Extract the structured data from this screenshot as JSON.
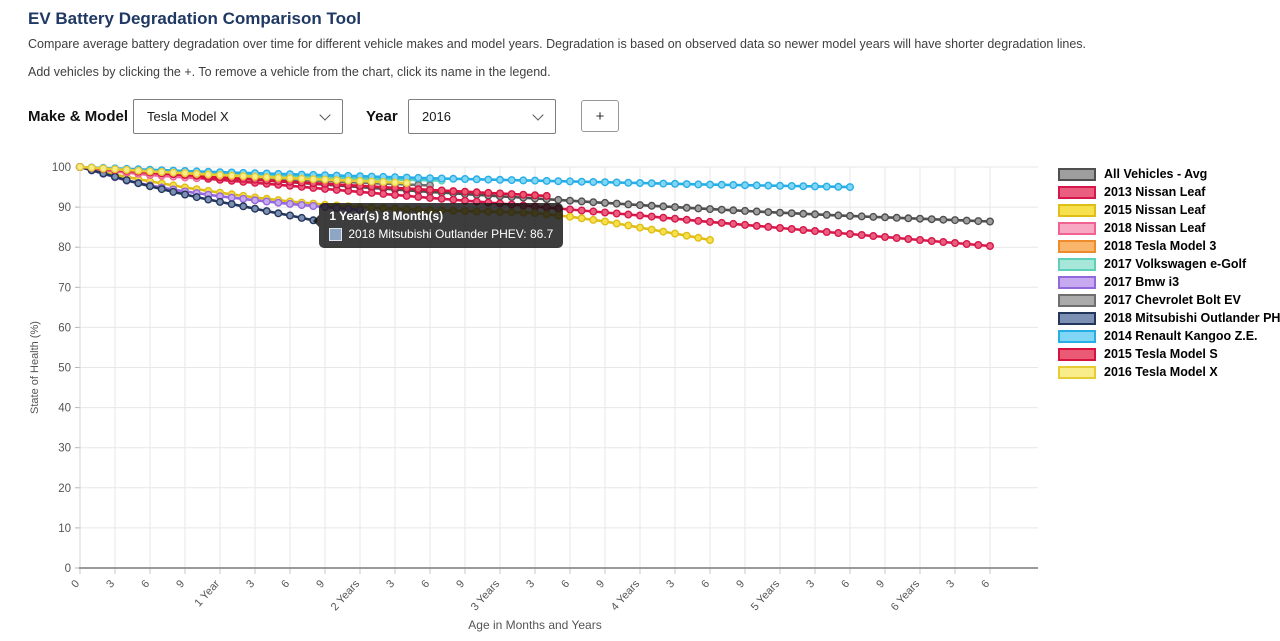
{
  "header": {
    "title": "EV Battery Degradation Comparison Tool",
    "description_line1": "Compare average battery degradation over time for different vehicle makes and model years. Degradation is based on observed data so newer model years will have shorter degradation lines.",
    "description_line2": "Add vehicles by clicking the +. To remove a vehicle from the chart, click its name in the legend."
  },
  "controls": {
    "make_model_label": "Make & Model",
    "make_model_value": "Tesla Model X",
    "year_label": "Year",
    "year_value": "2016",
    "add_button_label": "+"
  },
  "chart_data": {
    "type": "line",
    "title": "",
    "xlabel": "Age in Months and Years",
    "ylabel": "State of Health (%)",
    "ylim": [
      0,
      100
    ],
    "y_ticks": [
      0,
      10,
      20,
      30,
      40,
      50,
      60,
      70,
      80,
      90,
      100
    ],
    "x_unit": "months",
    "x_max_months": 78,
    "grid": true,
    "legend_position": "right",
    "x_ticks": {
      "months": [
        0,
        3,
        6,
        9,
        12,
        15,
        18,
        21,
        24,
        27,
        30,
        33,
        36,
        39,
        42,
        45,
        48,
        51,
        54,
        57,
        60,
        63,
        66,
        69,
        72,
        75,
        78
      ],
      "labels": [
        "0",
        "3",
        "6",
        "9",
        "1 Year",
        "3",
        "6",
        "9",
        "2 Years",
        "3",
        "6",
        "9",
        "3 Years",
        "3",
        "6",
        "9",
        "4 Years",
        "3",
        "6",
        "9",
        "5 Years",
        "3",
        "6",
        "9",
        "6 Years",
        "3",
        "6"
      ]
    },
    "series": [
      {
        "name": "All Vehicles - Avg",
        "fill": "#9e9e9e",
        "border": "#4f4f4f",
        "points": [
          [
            0,
            100
          ],
          [
            6,
            98.7
          ],
          [
            12,
            97.4
          ],
          [
            18,
            96.2
          ],
          [
            24,
            95.0
          ],
          [
            30,
            93.8
          ],
          [
            36,
            92.7
          ],
          [
            42,
            91.6
          ],
          [
            48,
            90.5
          ],
          [
            54,
            89.5
          ],
          [
            60,
            88.6
          ],
          [
            66,
            87.8
          ],
          [
            72,
            87.1
          ],
          [
            78,
            86.4
          ]
        ]
      },
      {
        "name": "2013 Nissan Leaf",
        "fill": "#ea5f7f",
        "border": "#d6174a",
        "points": [
          [
            0,
            100
          ],
          [
            6,
            98.3
          ],
          [
            12,
            96.8
          ],
          [
            18,
            95.3
          ],
          [
            24,
            93.8
          ],
          [
            30,
            92.3
          ],
          [
            36,
            90.9
          ],
          [
            42,
            89.4
          ],
          [
            48,
            87.9
          ],
          [
            54,
            86.3
          ],
          [
            60,
            84.8
          ],
          [
            66,
            83.3
          ],
          [
            72,
            81.8
          ],
          [
            78,
            80.3
          ]
        ]
      },
      {
        "name": "2015 Nissan Leaf",
        "fill": "#f6e04e",
        "border": "#e0be18",
        "points": [
          [
            0,
            100
          ],
          [
            3,
            98.1
          ],
          [
            6,
            96.4
          ],
          [
            9,
            94.9
          ],
          [
            12,
            93.6
          ],
          [
            15,
            92.4
          ],
          [
            18,
            91.4
          ],
          [
            21,
            90.6
          ],
          [
            24,
            90.0
          ],
          [
            30,
            89.2
          ],
          [
            36,
            88.8
          ],
          [
            39,
            88.5
          ],
          [
            42,
            87.6
          ],
          [
            45,
            86.4
          ],
          [
            48,
            84.9
          ],
          [
            51,
            83.4
          ],
          [
            54,
            81.8
          ]
        ]
      },
      {
        "name": "2018 Nissan Leaf",
        "fill": "#f8a8c2",
        "border": "#ef6292",
        "points": [
          [
            0,
            100
          ],
          [
            3,
            98.9
          ],
          [
            6,
            98.0
          ],
          [
            8,
            97.6
          ],
          [
            10,
            97.2
          ]
        ]
      },
      {
        "name": "2018 Tesla Model 3",
        "fill": "#f9b569",
        "border": "#ee8b2c",
        "points": [
          [
            0,
            100
          ],
          [
            3,
            99.5
          ],
          [
            6,
            99.1
          ],
          [
            9,
            98.7
          ],
          [
            12,
            98.4
          ],
          [
            15,
            98.1
          ],
          [
            18,
            97.8
          ],
          [
            22,
            97.4
          ]
        ]
      },
      {
        "name": "2017 Volkswagen e-Golf",
        "fill": "#a6e7da",
        "border": "#5ed0b9",
        "points": [
          [
            0,
            100
          ],
          [
            6,
            99.0
          ],
          [
            12,
            98.2
          ],
          [
            18,
            97.6
          ],
          [
            24,
            97.1
          ],
          [
            31,
            96.6
          ]
        ]
      },
      {
        "name": "2017 Bmw i3",
        "fill": "#c6a9ef",
        "border": "#9468dd",
        "points": [
          [
            0,
            100
          ],
          [
            2,
            98.3
          ],
          [
            4,
            96.6
          ],
          [
            6,
            95.4
          ],
          [
            9,
            93.9
          ],
          [
            12,
            92.7
          ],
          [
            15,
            91.7
          ],
          [
            18,
            90.8
          ],
          [
            21,
            90.0
          ],
          [
            24,
            89.3
          ]
        ]
      },
      {
        "name": "2017 Chevrolet Bolt EV",
        "fill": "#ababab",
        "border": "#6f6f6f",
        "points": [
          [
            0,
            100
          ],
          [
            6,
            98.8
          ],
          [
            12,
            97.8
          ],
          [
            18,
            96.9
          ],
          [
            24,
            96.1
          ],
          [
            30,
            95.4
          ]
        ]
      },
      {
        "name": "2018 Mitsubishi Outlander PHEV",
        "fill": "#7b90b2",
        "border": "#24365c",
        "points": [
          [
            0,
            100
          ],
          [
            2,
            98.4
          ],
          [
            4,
            96.7
          ],
          [
            6,
            95.2
          ],
          [
            8,
            93.8
          ],
          [
            10,
            92.5
          ],
          [
            12,
            91.3
          ],
          [
            14,
            90.2
          ],
          [
            16,
            89.0
          ],
          [
            18,
            87.9
          ],
          [
            20,
            86.7
          ]
        ]
      },
      {
        "name": "2014 Renault Kangoo Z.E.",
        "fill": "#82d6f5",
        "border": "#27aee6",
        "points": [
          [
            0,
            100
          ],
          [
            6,
            99.3
          ],
          [
            12,
            98.7
          ],
          [
            18,
            98.2
          ],
          [
            24,
            97.7
          ],
          [
            30,
            97.2
          ],
          [
            36,
            96.8
          ],
          [
            42,
            96.4
          ],
          [
            48,
            96.0
          ],
          [
            54,
            95.6
          ],
          [
            60,
            95.3
          ],
          [
            66,
            95.0
          ]
        ]
      },
      {
        "name": "2015 Tesla Model S",
        "fill": "#ea5a74",
        "border": "#d6123f",
        "points": [
          [
            0,
            100
          ],
          [
            6,
            98.6
          ],
          [
            12,
            97.4
          ],
          [
            18,
            96.3
          ],
          [
            24,
            95.3
          ],
          [
            30,
            94.3
          ],
          [
            36,
            93.4
          ],
          [
            40,
            92.8
          ]
        ]
      },
      {
        "name": "2016 Tesla Model X",
        "fill": "#f9ec8b",
        "border": "#e6cb33",
        "points": [
          [
            0,
            100
          ],
          [
            6,
            98.9
          ],
          [
            12,
            98.0
          ],
          [
            18,
            97.2
          ],
          [
            24,
            96.5
          ],
          [
            28,
            96.0
          ]
        ]
      }
    ]
  },
  "tooltip": {
    "title": "1 Year(s) 8 Month(s)",
    "series_label": "2018 Mitsubishi Outlander PHEV",
    "value": "86.7",
    "display_text": "2018 Mitsubishi Outlander PHEV: 86.7",
    "anchor_month": 20,
    "anchor_value": 86.7,
    "swatch_fill": "#8fa5c4"
  },
  "colors": {
    "title_text": "#1f3864",
    "grid_line": "#e7e7e7",
    "axis_line": "#9a9a9a",
    "tick_text": "#555555"
  }
}
